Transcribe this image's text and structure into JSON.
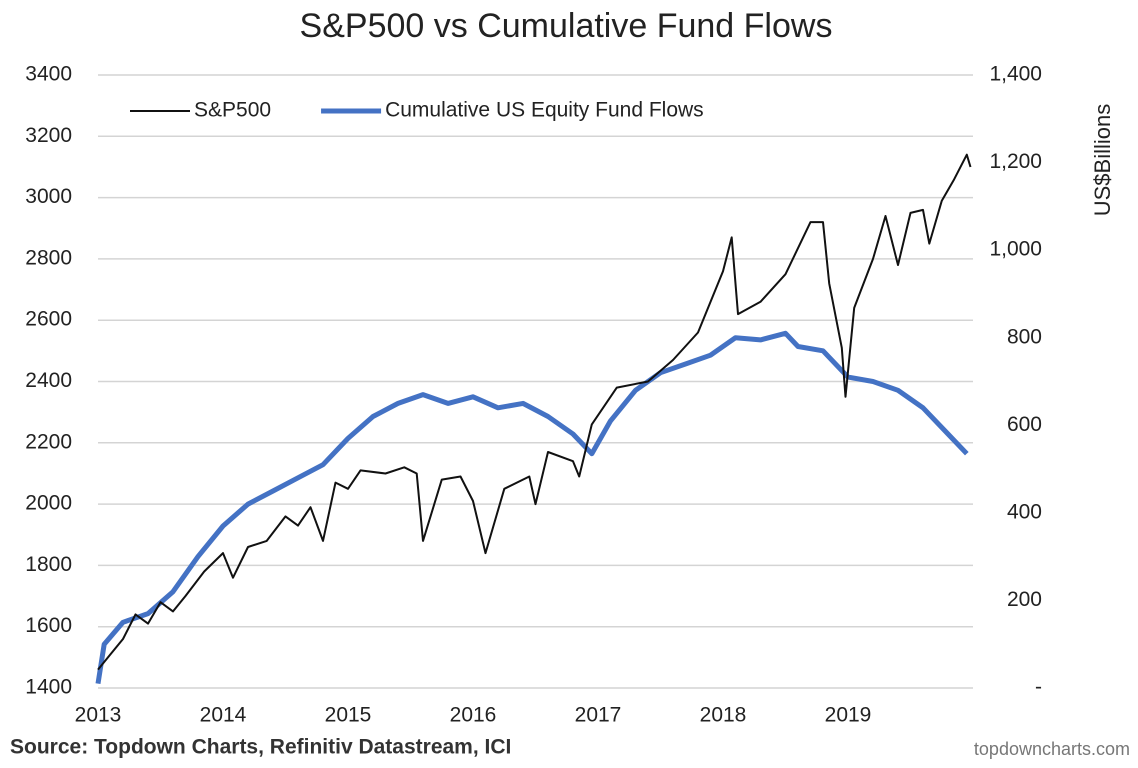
{
  "chart_data": {
    "type": "line",
    "title": "S&P500 vs Cumulative Fund Flows",
    "y2_label": "US$Billions",
    "source": "Source: Topdown Charts, Refinitiv Datastream, ICI",
    "watermark": "topdowncharts.com",
    "xlim": [
      2013,
      2020
    ],
    "xticks": [
      2013,
      2014,
      2015,
      2016,
      2017,
      2018,
      2019
    ],
    "ylim": [
      1400,
      3400
    ],
    "yticks": [
      1400,
      1600,
      1800,
      2000,
      2200,
      2400,
      2600,
      2800,
      3000,
      3200,
      3400
    ],
    "y2lim": [
      0,
      1400
    ],
    "y2ticks": [
      {
        "value": 0,
        "label": "-"
      },
      200,
      400,
      600,
      800,
      {
        "value": 1000,
        "label": "1,000"
      },
      {
        "value": 1200,
        "label": "1,200"
      },
      {
        "value": 1400,
        "label": "1,400"
      }
    ],
    "grid": true,
    "legend": "top-left",
    "series": [
      {
        "name": "S&P500",
        "color": "#111111",
        "width": 2,
        "x": [
          2013.0,
          2013.1,
          2013.2,
          2013.3,
          2013.4,
          2013.5,
          2013.6,
          2013.7,
          2013.85,
          2014.0,
          2014.08,
          2014.2,
          2014.35,
          2014.5,
          2014.6,
          2014.7,
          2014.8,
          2014.9,
          2015.0,
          2015.1,
          2015.3,
          2015.45,
          2015.55,
          2015.6,
          2015.75,
          2015.9,
          2016.0,
          2016.1,
          2016.25,
          2016.45,
          2016.5,
          2016.6,
          2016.8,
          2016.85,
          2016.95,
          2017.15,
          2017.4,
          2017.6,
          2017.8,
          2018.0,
          2018.07,
          2018.12,
          2018.3,
          2018.5,
          2018.7,
          2018.8,
          2018.85,
          2018.95,
          2018.98,
          2019.05,
          2019.2,
          2019.3,
          2019.4,
          2019.5,
          2019.6,
          2019.65,
          2019.75,
          2019.85,
          2019.95,
          2019.98
        ],
        "values": [
          1460,
          1510,
          1560,
          1640,
          1610,
          1680,
          1650,
          1700,
          1780,
          1840,
          1760,
          1860,
          1880,
          1960,
          1930,
          1990,
          1880,
          2070,
          2050,
          2110,
          2100,
          2120,
          2100,
          1880,
          2080,
          2090,
          2010,
          1840,
          2050,
          2090,
          2000,
          2170,
          2140,
          2090,
          2260,
          2380,
          2400,
          2470,
          2560,
          2760,
          2870,
          2620,
          2660,
          2750,
          2920,
          2920,
          2720,
          2510,
          2350,
          2640,
          2800,
          2940,
          2780,
          2950,
          2960,
          2850,
          2990,
          3060,
          3140,
          3100
        ]
      },
      {
        "name": "Cumulative US Equity Fund Flows",
        "color": "#4472c4",
        "width": 5,
        "axis": "y2",
        "x": [
          2013.0,
          2013.05,
          2013.2,
          2013.4,
          2013.6,
          2013.8,
          2014.0,
          2014.2,
          2014.4,
          2014.6,
          2014.8,
          2015.0,
          2015.2,
          2015.4,
          2015.6,
          2015.8,
          2016.0,
          2016.2,
          2016.4,
          2016.6,
          2016.8,
          2016.95,
          2017.1,
          2017.3,
          2017.5,
          2017.7,
          2017.9,
          2018.1,
          2018.3,
          2018.5,
          2018.6,
          2018.8,
          2019.0,
          2019.2,
          2019.4,
          2019.6,
          2019.8,
          2019.95
        ],
        "values": [
          10,
          100,
          150,
          170,
          220,
          300,
          370,
          420,
          450,
          480,
          510,
          570,
          620,
          650,
          670,
          650,
          665,
          640,
          650,
          620,
          580,
          535,
          610,
          680,
          720,
          740,
          760,
          800,
          795,
          810,
          780,
          770,
          710,
          700,
          680,
          640,
          580,
          535
        ]
      }
    ]
  }
}
